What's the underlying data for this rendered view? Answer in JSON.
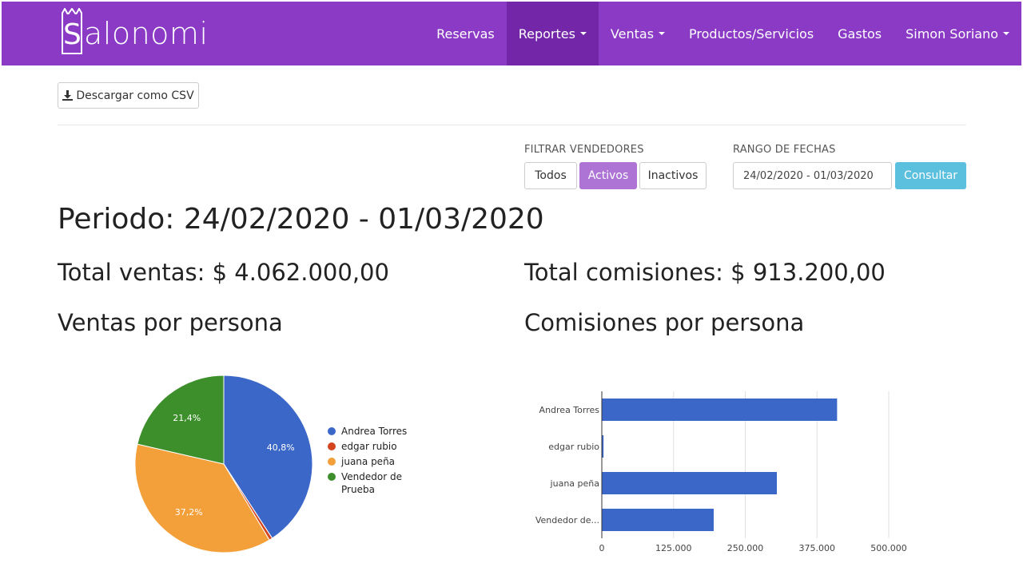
{
  "brand": {
    "name": "alonomi",
    "mark_letter": "S"
  },
  "nav": {
    "items": [
      {
        "label": "Reservas",
        "dropdown": false,
        "active": false
      },
      {
        "label": "Reportes",
        "dropdown": true,
        "active": true
      },
      {
        "label": "Ventas",
        "dropdown": true,
        "active": false
      },
      {
        "label": "Productos/Servicios",
        "dropdown": false,
        "active": false
      },
      {
        "label": "Gastos",
        "dropdown": false,
        "active": false
      },
      {
        "label": "Simon Soriano",
        "dropdown": true,
        "active": false
      }
    ]
  },
  "toolbar": {
    "download_label": "Descargar como CSV"
  },
  "filters": {
    "vendors_label": "FILTRAR VENDEDORES",
    "options": [
      "Todos",
      "Activos",
      "Inactivos"
    ],
    "selected": "Activos",
    "date_label": "RANGO DE FECHAS",
    "date_value": "24/02/2020 - 01/03/2020",
    "submit_label": "Consultar"
  },
  "report": {
    "period": "Periodo: 24/02/2020 - 01/03/2020",
    "total_sales": "Total ventas: $ 4.062.000,00",
    "total_commissions": "Total comisiones: $ 913.200,00",
    "sales_title": "Ventas por persona",
    "commissions_title": "Comisiones por persona"
  },
  "colors": {
    "navbar": "#8a3ac5",
    "accent": "#ad74d6",
    "submit": "#5bc0de",
    "blue": "#3b67c9",
    "red": "#d3441f",
    "orange": "#f3a03a",
    "green": "#3d8f2b"
  },
  "chart_data": [
    {
      "type": "pie",
      "title": "",
      "labels": [
        "Andrea Torres",
        "edgar rubio",
        "juana peña",
        "Vendedor de Prueba"
      ],
      "values": [
        40.8,
        0.6,
        37.2,
        21.4
      ],
      "data_labels": [
        "40,8%",
        "",
        "37,2%",
        "21,4%"
      ],
      "colors": [
        "#3b67c9",
        "#d3441f",
        "#f3a03a",
        "#3d8f2b"
      ],
      "legend": "right"
    },
    {
      "type": "bar",
      "orientation": "horizontal",
      "title": "",
      "categories": [
        "Andrea Torres",
        "edgar rubio",
        "juana peña",
        "Vendedor de..."
      ],
      "values": [
        410000,
        3000,
        305000,
        195000
      ],
      "xlim": [
        0,
        500000
      ],
      "x_ticks": [
        0,
        125000,
        250000,
        375000,
        500000
      ],
      "x_tick_labels": [
        "0",
        "125.000",
        "250.000",
        "375.000",
        "500.000"
      ],
      "color": "#3b67c9",
      "grid": true
    }
  ]
}
